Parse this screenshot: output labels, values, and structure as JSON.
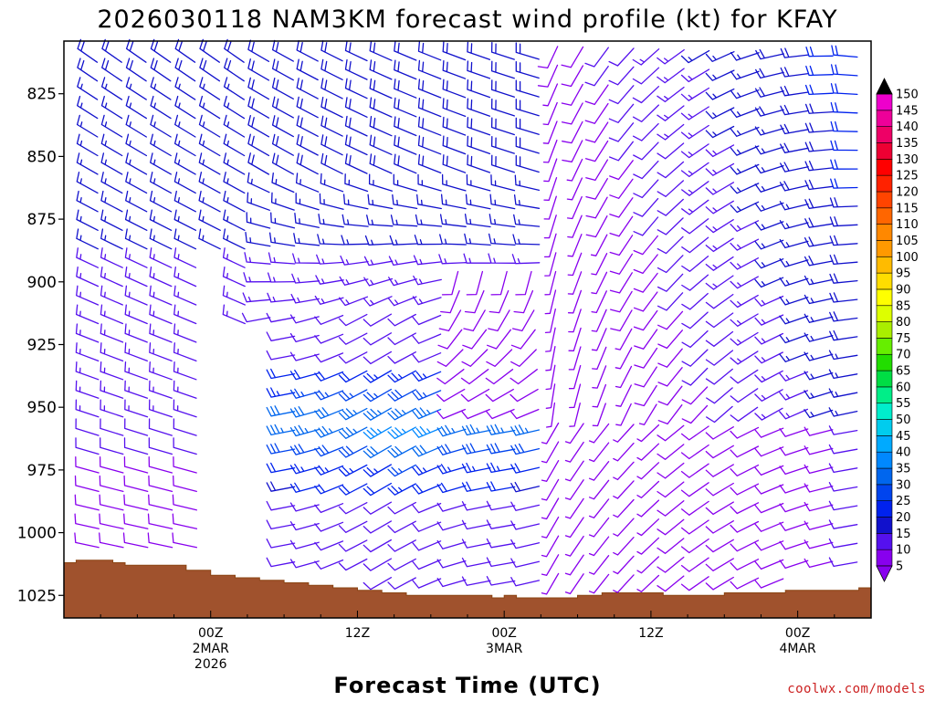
{
  "chart_data": {
    "type": "wind-profile",
    "title": "2026030118 NAM3KM forecast wind profile (kt) for KFAY",
    "xlabel": "Forecast Time (UTC)",
    "ylabel": "",
    "credit": "coolwx.com/models",
    "y_axis": {
      "range": [
        1034,
        804
      ],
      "ticks": [
        825,
        850,
        875,
        900,
        925,
        950,
        975,
        1000,
        1025
      ],
      "levels": [
        810,
        817.5,
        825,
        832.5,
        840,
        847.5,
        855,
        862.5,
        870,
        877.5,
        885,
        892.5,
        900,
        907.5,
        915,
        922.5,
        930,
        937.5,
        945,
        952.5,
        960,
        967.5,
        975,
        982.5,
        990,
        997.5,
        1005,
        1012.5,
        1020
      ]
    },
    "x_axis": {
      "range": [
        -12,
        54
      ],
      "tick_hours": [
        0,
        12,
        24,
        36,
        48
      ],
      "tick_labels": [
        {
          "hour": 0,
          "lines": [
            "00Z",
            "2MAR",
            "2026"
          ]
        },
        {
          "hour": 12,
          "lines": [
            "12Z"
          ]
        },
        {
          "hour": 24,
          "lines": [
            "00Z",
            "3MAR"
          ]
        },
        {
          "hour": 36,
          "lines": [
            "12Z"
          ]
        },
        {
          "hour": 48,
          "lines": [
            "00Z",
            "4MAR"
          ]
        }
      ]
    },
    "colorbar": {
      "values": [
        5,
        10,
        15,
        20,
        25,
        30,
        35,
        40,
        45,
        50,
        55,
        60,
        65,
        70,
        75,
        80,
        85,
        90,
        95,
        100,
        105,
        110,
        115,
        120,
        125,
        130,
        135,
        140,
        145,
        150
      ],
      "colors": [
        "#8800ee",
        "#5511ee",
        "#1111cc",
        "#0022ee",
        "#0044ee",
        "#0066ee",
        "#0088ff",
        "#00aaff",
        "#00ccee",
        "#00eecc",
        "#00ee88",
        "#00dd44",
        "#22dd00",
        "#66ee00",
        "#aaee00",
        "#ddff00",
        "#ffff00",
        "#ffdd00",
        "#ffbb00",
        "#ff9900",
        "#ff8800",
        "#ff6600",
        "#ff4400",
        "#ff2200",
        "#ff0000",
        "#ee0033",
        "#ee0066",
        "#ee0099",
        "#ee00cc",
        "#ff00ff"
      ]
    },
    "terrain_pressure": [
      {
        "hour": -12,
        "p": 1012
      },
      {
        "hour": -11,
        "p": 1011
      },
      {
        "hour": -8,
        "p": 1012
      },
      {
        "hour": -7,
        "p": 1013
      },
      {
        "hour": -4,
        "p": 1013
      },
      {
        "hour": -2,
        "p": 1015
      },
      {
        "hour": 0,
        "p": 1017
      },
      {
        "hour": 2,
        "p": 1018
      },
      {
        "hour": 4,
        "p": 1019
      },
      {
        "hour": 6,
        "p": 1020
      },
      {
        "hour": 8,
        "p": 1021
      },
      {
        "hour": 10,
        "p": 1022
      },
      {
        "hour": 12,
        "p": 1023
      },
      {
        "hour": 14,
        "p": 1024
      },
      {
        "hour": 16,
        "p": 1025
      },
      {
        "hour": 20,
        "p": 1025
      },
      {
        "hour": 22,
        "p": 1025
      },
      {
        "hour": 23,
        "p": 1026
      },
      {
        "hour": 24,
        "p": 1025
      },
      {
        "hour": 25,
        "p": 1026
      },
      {
        "hour": 30,
        "p": 1025
      },
      {
        "hour": 32,
        "p": 1024
      },
      {
        "hour": 37,
        "p": 1025
      },
      {
        "hour": 42,
        "p": 1024
      },
      {
        "hour": 47,
        "p": 1023
      },
      {
        "hour": 53,
        "p": 1022
      },
      {
        "hour": 54,
        "p": 1022
      }
    ],
    "wind_regimes_note": "",
    "hours": [
      -10,
      -8,
      -6,
      -4,
      -2,
      0,
      2,
      4,
      6,
      8,
      10,
      12,
      14,
      16,
      18,
      20,
      22,
      24,
      26,
      28,
      30,
      32,
      34,
      36,
      38,
      40,
      42,
      44,
      46,
      48,
      50,
      52
    ]
  }
}
